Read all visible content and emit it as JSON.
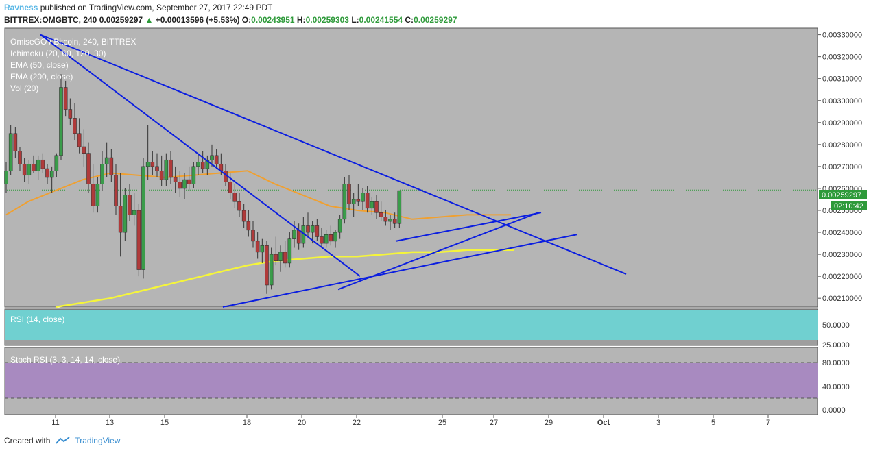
{
  "header": {
    "user": "Ravness",
    "published_text": "published on TradingView.com, September 27, 2017 22:49 PDT",
    "symbol": "BITTREX:OMGBTC, 240",
    "last": "0.00259297",
    "change": "+0.00013596 (+5.53%)",
    "o_label": "O:",
    "o": "0.00243951",
    "h_label": "H:",
    "h": "0.00259303",
    "l_label": "L:",
    "l": "0.00241554",
    "c_label": "C:",
    "c": "0.00259297"
  },
  "legend": {
    "title": "OmiseGO / Bitcoin, 240, BITTREX",
    "ichimoku": "Ichimoku (20, 60, 120, 30)",
    "ema50": "EMA (50, close)",
    "ema200": "EMA (200, close)",
    "vol": "Vol (20)",
    "rsi": "RSI (14, close)",
    "stoch": "Stoch RSI (3, 3, 14, 14, close)"
  },
  "price_badge": "0.00259297",
  "countdown_badge": "02:10:42",
  "footer": {
    "created_with": "Created with",
    "brand": "TradingView"
  },
  "colors": {
    "bg": "#b5b5b5",
    "up": "#3a9c4a",
    "down": "#b03a3a",
    "trend": "#0b1ee0",
    "ema50": "#f0a030",
    "ema200": "#f5f53a",
    "kijun": "#a0504a",
    "tenkan": "#3aa0e0",
    "rsi_bg": "#70d0d0",
    "stoch_bg": "#a88ac0"
  },
  "chart_data": [
    {
      "type": "candlestick",
      "title": "OmiseGO / Bitcoin, 240, BITTREX",
      "ylim": [
        0.00206,
        0.00333
      ],
      "y_ticks": [
        "0.00330000",
        "0.00320000",
        "0.00310000",
        "0.00300000",
        "0.00290000",
        "0.00280000",
        "0.00270000",
        "0.00260000",
        "0.00250000",
        "0.00240000",
        "0.00230000",
        "0.00220000",
        "0.00210000"
      ],
      "x_ticks": [
        "11",
        "13",
        "15",
        "18",
        "20",
        "22",
        "25",
        "27",
        "29",
        "Oct",
        "3",
        "5",
        "7"
      ],
      "bars_per_day": 6,
      "start_day": 9.2,
      "candles": [
        [
          0.00262,
          0.00272,
          0.00258,
          0.00268
        ],
        [
          0.00268,
          0.00289,
          0.00266,
          0.00285
        ],
        [
          0.00285,
          0.00288,
          0.00274,
          0.00277
        ],
        [
          0.00277,
          0.00279,
          0.00268,
          0.00271
        ],
        [
          0.00271,
          0.00274,
          0.00263,
          0.00266
        ],
        [
          0.00266,
          0.00273,
          0.00262,
          0.00271
        ],
        [
          0.00271,
          0.00275,
          0.00267,
          0.00268
        ],
        [
          0.00268,
          0.00275,
          0.00264,
          0.00273
        ],
        [
          0.00273,
          0.00276,
          0.00267,
          0.00269
        ],
        [
          0.00269,
          0.00271,
          0.00262,
          0.00265
        ],
        [
          0.00265,
          0.0027,
          0.00258,
          0.00268
        ],
        [
          0.00268,
          0.00276,
          0.00265,
          0.00275
        ],
        [
          0.00275,
          0.00312,
          0.00273,
          0.00306
        ],
        [
          0.00306,
          0.00309,
          0.00293,
          0.00296
        ],
        [
          0.00296,
          0.00301,
          0.00289,
          0.00292
        ],
        [
          0.00292,
          0.00299,
          0.00282,
          0.00285
        ],
        [
          0.00285,
          0.00292,
          0.00276,
          0.00279
        ],
        [
          0.00279,
          0.00287,
          0.0027,
          0.00276
        ],
        [
          0.00276,
          0.00281,
          0.00258,
          0.00262
        ],
        [
          0.00262,
          0.00271,
          0.00249,
          0.00252
        ],
        [
          0.00252,
          0.00265,
          0.00249,
          0.00262
        ],
        [
          0.00262,
          0.00277,
          0.00259,
          0.00271
        ],
        [
          0.00271,
          0.00281,
          0.00265,
          0.00274
        ],
        [
          0.00274,
          0.00278,
          0.00263,
          0.00266
        ],
        [
          0.00266,
          0.00271,
          0.00248,
          0.00252
        ],
        [
          0.00252,
          0.00267,
          0.00229,
          0.0024
        ],
        [
          0.0024,
          0.0026,
          0.00236,
          0.00257
        ],
        [
          0.00257,
          0.00262,
          0.00245,
          0.00248
        ],
        [
          0.00248,
          0.00258,
          0.00243,
          0.0025
        ],
        [
          0.0025,
          0.00253,
          0.0022,
          0.00223
        ],
        [
          0.00223,
          0.00274,
          0.00219,
          0.0027
        ],
        [
          0.0027,
          0.00289,
          0.00264,
          0.00272
        ],
        [
          0.00272,
          0.00277,
          0.00266,
          0.0027
        ],
        [
          0.0027,
          0.00276,
          0.00265,
          0.00268
        ],
        [
          0.00268,
          0.00275,
          0.00261,
          0.00264
        ],
        [
          0.00264,
          0.00276,
          0.00261,
          0.00273
        ],
        [
          0.00273,
          0.00277,
          0.00262,
          0.00265
        ],
        [
          0.00265,
          0.0027,
          0.00258,
          0.00263
        ],
        [
          0.00263,
          0.00268,
          0.00256,
          0.0026
        ],
        [
          0.0026,
          0.00267,
          0.00255,
          0.00264
        ],
        [
          0.00264,
          0.0027,
          0.00259,
          0.00262
        ],
        [
          0.00262,
          0.00272,
          0.0026,
          0.0027
        ],
        [
          0.0027,
          0.00276,
          0.00266,
          0.00272
        ],
        [
          0.00272,
          0.00277,
          0.00267,
          0.00269
        ],
        [
          0.00269,
          0.00275,
          0.00266,
          0.00273
        ],
        [
          0.00273,
          0.0028,
          0.0027,
          0.00275
        ],
        [
          0.00275,
          0.00278,
          0.00269,
          0.00271
        ],
        [
          0.00271,
          0.00276,
          0.00266,
          0.00268
        ],
        [
          0.00268,
          0.00271,
          0.00261,
          0.00263
        ],
        [
          0.00263,
          0.00267,
          0.00255,
          0.00258
        ],
        [
          0.00258,
          0.00262,
          0.00251,
          0.00254
        ],
        [
          0.00254,
          0.00258,
          0.00247,
          0.0025
        ],
        [
          0.0025,
          0.00253,
          0.00242,
          0.00245
        ],
        [
          0.00245,
          0.0025,
          0.00238,
          0.00241
        ],
        [
          0.00241,
          0.00245,
          0.00233,
          0.00236
        ],
        [
          0.00236,
          0.0024,
          0.00228,
          0.00231
        ],
        [
          0.00231,
          0.00237,
          0.00226,
          0.00234
        ],
        [
          0.00234,
          0.00236,
          0.00212,
          0.00216
        ],
        [
          0.00216,
          0.00233,
          0.00214,
          0.0023
        ],
        [
          0.0023,
          0.00238,
          0.00225,
          0.00227
        ],
        [
          0.00227,
          0.00234,
          0.00222,
          0.00231
        ],
        [
          0.00231,
          0.00236,
          0.00224,
          0.00226
        ],
        [
          0.00226,
          0.0024,
          0.00224,
          0.00237
        ],
        [
          0.00237,
          0.00245,
          0.00233,
          0.00241
        ],
        [
          0.00241,
          0.00244,
          0.00232,
          0.00235
        ],
        [
          0.00235,
          0.00247,
          0.00233,
          0.00243
        ],
        [
          0.00243,
          0.00249,
          0.00238,
          0.0024
        ],
        [
          0.0024,
          0.00245,
          0.00235,
          0.00243
        ],
        [
          0.00243,
          0.00246,
          0.00236,
          0.00238
        ],
        [
          0.00238,
          0.00242,
          0.00233,
          0.00235
        ],
        [
          0.00235,
          0.00241,
          0.00233,
          0.00239
        ],
        [
          0.00239,
          0.00243,
          0.00234,
          0.00236
        ],
        [
          0.00236,
          0.00241,
          0.00233,
          0.0024
        ],
        [
          0.0024,
          0.00248,
          0.00237,
          0.00246
        ],
        [
          0.00246,
          0.00265,
          0.00244,
          0.00262
        ],
        [
          0.00262,
          0.00266,
          0.0025,
          0.00253
        ],
        [
          0.00253,
          0.00258,
          0.00247,
          0.00255
        ],
        [
          0.00255,
          0.00262,
          0.00252,
          0.00254
        ],
        [
          0.00254,
          0.0026,
          0.0025,
          0.00258
        ],
        [
          0.00258,
          0.00261,
          0.00249,
          0.00251
        ],
        [
          0.00251,
          0.00256,
          0.00248,
          0.00254
        ],
        [
          0.00254,
          0.00257,
          0.00246,
          0.00249
        ],
        [
          0.00249,
          0.00254,
          0.00245,
          0.00247
        ],
        [
          0.00247,
          0.0025,
          0.00243,
          0.00245
        ],
        [
          0.00245,
          0.00248,
          0.00241,
          0.00246
        ],
        [
          0.00246,
          0.00249,
          0.00242,
          0.00244
        ],
        [
          0.00244,
          0.00259,
          0.00242,
          0.00259
        ]
      ],
      "ema50": [
        [
          9.2,
          0.00248
        ],
        [
          10,
          0.00254
        ],
        [
          11,
          0.00259
        ],
        [
          12,
          0.00264
        ],
        [
          13,
          0.00267
        ],
        [
          14,
          0.00266
        ],
        [
          15,
          0.00265
        ],
        [
          16,
          0.00266
        ],
        [
          17,
          0.00267
        ],
        [
          18,
          0.00268
        ],
        [
          19,
          0.00262
        ],
        [
          20,
          0.00257
        ],
        [
          21,
          0.00252
        ],
        [
          22,
          0.0025
        ],
        [
          23,
          0.00249
        ],
        [
          24,
          0.00246
        ],
        [
          25,
          0.00247
        ],
        [
          26,
          0.00248
        ],
        [
          27,
          0.00248
        ],
        [
          27.6,
          0.00248
        ]
      ],
      "ema200": [
        [
          11,
          0.00206
        ],
        [
          13,
          0.0021
        ],
        [
          14,
          0.00213
        ],
        [
          15,
          0.00216
        ],
        [
          16,
          0.00219
        ],
        [
          17,
          0.00222
        ],
        [
          18,
          0.00225
        ],
        [
          19,
          0.00227
        ],
        [
          20,
          0.00228
        ],
        [
          21,
          0.00229
        ],
        [
          22,
          0.00229
        ],
        [
          23,
          0.0023
        ],
        [
          24,
          0.00231
        ],
        [
          25,
          0.00231
        ],
        [
          26,
          0.00232
        ],
        [
          27,
          0.00232
        ],
        [
          27.7,
          0.00232
        ]
      ],
      "trendlines": [
        [
          [
            10.45,
            0.0033
          ],
          [
            31.8,
            0.00221
          ]
        ],
        [
          [
            10.45,
            0.0033
          ],
          [
            22.1,
            0.0022
          ]
        ],
        [
          [
            21.3,
            0.00214
          ],
          [
            28.6,
            0.00249
          ]
        ],
        [
          [
            17.1,
            0.00206
          ],
          [
            30.0,
            0.00239
          ]
        ],
        [
          [
            23.4,
            0.00236
          ],
          [
            28.7,
            0.00249
          ]
        ]
      ]
    },
    {
      "type": "line",
      "title": "RSI (14, close)",
      "y_ticks": [
        "50.0000",
        "25.0000"
      ]
    },
    {
      "type": "line",
      "title": "Stoch RSI (3, 3, 14, 14, close)",
      "y_ticks": [
        "80.0000",
        "40.0000",
        "0.0000"
      ]
    }
  ]
}
